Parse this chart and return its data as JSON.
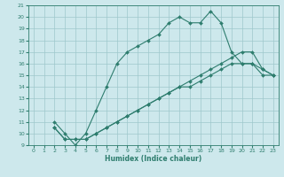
{
  "xlabel": "Humidex (Indice chaleur)",
  "xlim": [
    -0.5,
    23.5
  ],
  "ylim": [
    9,
    21
  ],
  "xticks": [
    0,
    1,
    2,
    3,
    4,
    5,
    6,
    7,
    8,
    9,
    10,
    11,
    12,
    13,
    14,
    15,
    16,
    17,
    18,
    19,
    20,
    21,
    22,
    23
  ],
  "yticks": [
    9,
    10,
    11,
    12,
    13,
    14,
    15,
    16,
    17,
    18,
    19,
    20,
    21
  ],
  "line_color": "#2e7d6e",
  "bg_color": "#cde8ec",
  "grid_color": "#9fc8cc",
  "line1_x": [
    2,
    3,
    4,
    5,
    6,
    7,
    8,
    9,
    10,
    11,
    12,
    13,
    14,
    15,
    16,
    17,
    18,
    19,
    20,
    21,
    22,
    23
  ],
  "line1_y": [
    11,
    10,
    9,
    10,
    12,
    14,
    16,
    17,
    17.5,
    18,
    18.5,
    19.5,
    20,
    19.5,
    19.5,
    20.5,
    19.5,
    17,
    16,
    16,
    15,
    15
  ],
  "line2_x": [
    2,
    3,
    4,
    5,
    6,
    7,
    8,
    9,
    10,
    11,
    12,
    13,
    14,
    15,
    16,
    17,
    18,
    19,
    20,
    21,
    22,
    23
  ],
  "line2_y": [
    10.5,
    9.5,
    9.5,
    9.5,
    10,
    10.5,
    11,
    11.5,
    12,
    12.5,
    13,
    13.5,
    14,
    14,
    14.5,
    15,
    15.5,
    16,
    16,
    16,
    15.5,
    15
  ],
  "line3_x": [
    2,
    3,
    4,
    5,
    6,
    7,
    8,
    9,
    10,
    11,
    12,
    13,
    14,
    15,
    16,
    17,
    18,
    19,
    20,
    21,
    22,
    23
  ],
  "line3_y": [
    10.5,
    9.5,
    9.5,
    9.5,
    10,
    10.5,
    11,
    11.5,
    12,
    12.5,
    13,
    13.5,
    14,
    14.5,
    15,
    15.5,
    16,
    16.5,
    17,
    17,
    15.5,
    15
  ],
  "xlabel_fontsize": 5.5,
  "tick_fontsize": 4.5,
  "xlabel_color": "#2e7d6e",
  "tick_color": "#2e7d6e",
  "spine_color": "#2e7d6e",
  "linewidth": 0.8,
  "markersize": 2.0
}
